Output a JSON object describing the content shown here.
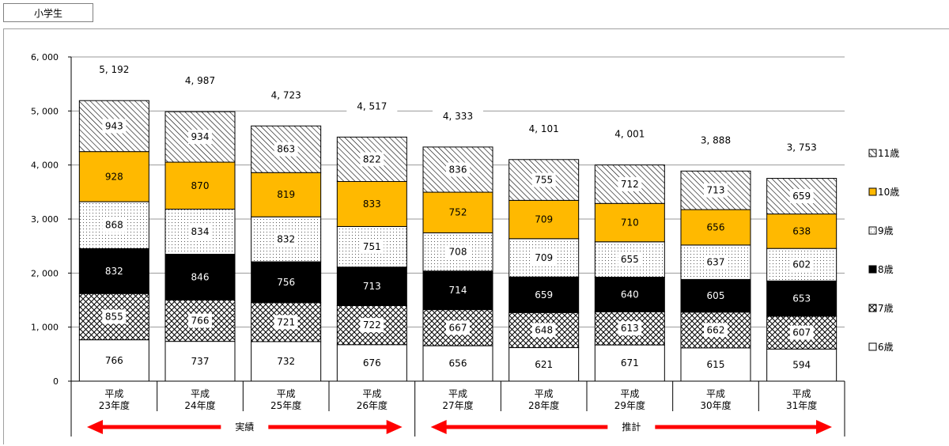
{
  "tab_label": "小学生",
  "colors": {
    "age11": "#ffffff",
    "age10": "#FFB900",
    "age9": "#ffffff",
    "age8": "#000000",
    "age7": "#ffffff",
    "age6": "#ffffff",
    "arrow": "#ff0000"
  },
  "chart_data": {
    "type": "bar",
    "stacked": true,
    "categories": [
      [
        "平成",
        "23年度"
      ],
      [
        "平成",
        "24年度"
      ],
      [
        "平成",
        "25年度"
      ],
      [
        "平成",
        "26年度"
      ],
      [
        "平成",
        "27年度"
      ],
      [
        "平成",
        "28年度"
      ],
      [
        "平成",
        "29年度"
      ],
      [
        "平成",
        "30年度"
      ],
      [
        "平成",
        "31年度"
      ]
    ],
    "ylim": [
      0,
      6000
    ],
    "yticks": [
      0,
      1000,
      2000,
      3000,
      4000,
      5000,
      6000
    ],
    "ytick_labels": [
      "0",
      "1, 000",
      "2, 000",
      "3, 000",
      "4, 000",
      "5, 000",
      "6, 000"
    ],
    "grid": true,
    "legend_position": "right",
    "series": [
      {
        "name": "6歳",
        "key": "age6",
        "pattern": "blank",
        "values": [
          766,
          737,
          732,
          676,
          656,
          621,
          671,
          615,
          594
        ]
      },
      {
        "name": "7歳",
        "key": "age7",
        "pattern": "cross",
        "values": [
          855,
          766,
          721,
          722,
          667,
          648,
          613,
          662,
          607
        ]
      },
      {
        "name": "8歳",
        "key": "age8",
        "pattern": "solid",
        "values": [
          832,
          846,
          756,
          713,
          714,
          659,
          640,
          605,
          653
        ]
      },
      {
        "name": "9歳",
        "key": "age9",
        "pattern": "dots",
        "values": [
          868,
          834,
          832,
          751,
          708,
          709,
          655,
          637,
          602
        ]
      },
      {
        "name": "10歳",
        "key": "age10",
        "pattern": "solid",
        "values": [
          928,
          870,
          819,
          833,
          752,
          709,
          710,
          656,
          638
        ]
      },
      {
        "name": "11歳",
        "key": "age11",
        "pattern": "hatch",
        "values": [
          943,
          934,
          863,
          822,
          836,
          755,
          712,
          713,
          659
        ]
      }
    ],
    "totals": [
      "5, 192",
      "4, 987",
      "4, 723",
      "4, 517",
      "4, 333",
      "4, 101",
      "4, 001",
      "3, 888",
      "3, 753"
    ],
    "legend_order": [
      "age11",
      "age10",
      "age9",
      "age8",
      "age7",
      "age6"
    ],
    "period_labels": [
      {
        "label": "実績",
        "from": 0,
        "to": 3
      },
      {
        "label": "推計",
        "from": 4,
        "to": 8
      }
    ]
  }
}
